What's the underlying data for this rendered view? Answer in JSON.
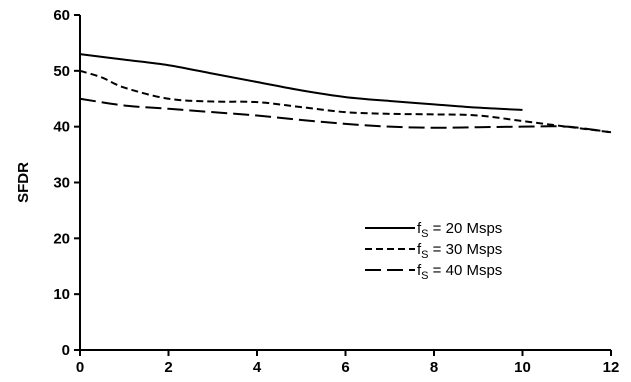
{
  "chart_data": {
    "type": "line",
    "title": "",
    "xlabel": "",
    "ylabel": "SFDR",
    "xlim": [
      0,
      12
    ],
    "ylim": [
      0,
      60
    ],
    "x_ticks": [
      0,
      2,
      4,
      6,
      8,
      10,
      12
    ],
    "y_ticks": [
      0,
      10,
      20,
      30,
      40,
      50,
      60
    ],
    "grid": false,
    "legend_position": "center-right",
    "series": [
      {
        "name": "fS = 20 Msps",
        "label_main": "f",
        "label_sub": "S",
        "label_rest": " = 20 Msps",
        "style": "solid",
        "x": [
          0,
          1,
          2,
          3,
          4,
          5,
          6,
          7,
          8,
          9,
          10
        ],
        "y": [
          53,
          52,
          51,
          49.5,
          48,
          46.5,
          45.3,
          44.6,
          44,
          43.4,
          43
        ]
      },
      {
        "name": "fS = 30 Msps",
        "label_main": "f",
        "label_sub": "S",
        "label_rest": " = 30 Msps",
        "style": "dashed",
        "x": [
          0,
          0.5,
          1,
          2,
          3,
          4,
          5,
          6,
          7,
          8,
          9,
          10,
          11,
          12
        ],
        "y": [
          50,
          48.8,
          47,
          45,
          44.5,
          44.4,
          43.5,
          42.6,
          42.3,
          42.2,
          42,
          41,
          40,
          39
        ]
      },
      {
        "name": "fS = 40 Msps",
        "label_main": "f",
        "label_sub": "S",
        "label_rest": " = 40 Msps",
        "style": "longdash",
        "x": [
          0,
          1,
          2,
          3,
          4,
          5,
          6,
          7,
          8,
          9,
          10,
          11,
          12
        ],
        "y": [
          45,
          43.8,
          43.2,
          42.6,
          42,
          41.2,
          40.5,
          40,
          39.8,
          39.9,
          40,
          40,
          39
        ]
      }
    ]
  }
}
